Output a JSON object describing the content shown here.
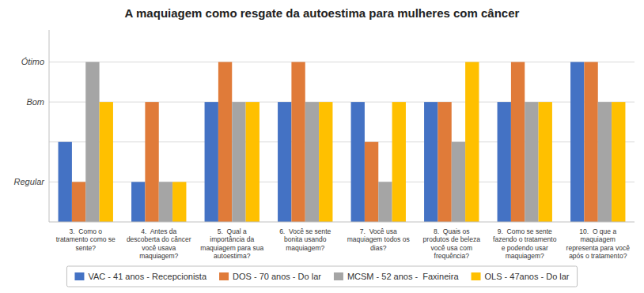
{
  "chart_data": {
    "type": "bar",
    "title": "A maquiagem como resgate da autoestima para mulheres com câncer",
    "categories": [
      "3.  Como o\ntratamento como se\nsente?",
      "4.  Antes da\ndescoberta do câncer\nvocê usava\nmaquiagem?",
      "5.  Qual a\nimportância da\nmaquiagem para sua\nautoestima?",
      "6.  Você se sente\nbonita usando\nmaquiagem?",
      "7.  Você usa\nmaquiagem todos os\ndias?",
      "8.  Quais os\nprodutos de beleza\nvocê usa com\nfrequência?",
      "9.  Como se sente\nfazendo o tratamento\ne podendo usar\nmaquiagem?",
      "10.  O que a\nmaquiagem\nrepresenta para você\napós o tratamento?"
    ],
    "series": [
      {
        "name": "VAC - 41 anos - Recepcionista",
        "color": "#4472c4",
        "values": [
          2,
          1,
          3,
          3,
          3,
          3,
          3,
          4
        ]
      },
      {
        "name": "DOS - 70 anos - Do lar",
        "color": "#e07b39",
        "values": [
          1,
          3,
          4,
          4,
          2,
          3,
          4,
          4
        ]
      },
      {
        "name": "MCSM - 52 anos -  Faxineira",
        "color": "#a5a5a5",
        "values": [
          4,
          1,
          3,
          3,
          1,
          2,
          3,
          3
        ]
      },
      {
        "name": "OLS - 47anos - Do lar",
        "color": "#ffc000",
        "values": [
          3,
          1,
          3,
          3,
          3,
          4,
          3,
          3
        ]
      }
    ],
    "ylim": [
      0,
      4.8
    ],
    "yticks": [
      {
        "value": 1,
        "label": "Regular"
      },
      {
        "value": 2,
        "label": null
      },
      {
        "value": 3,
        "label": "Bom"
      },
      {
        "value": 4,
        "label": "Ótimo"
      }
    ],
    "grid": true,
    "legend": "bottom"
  }
}
